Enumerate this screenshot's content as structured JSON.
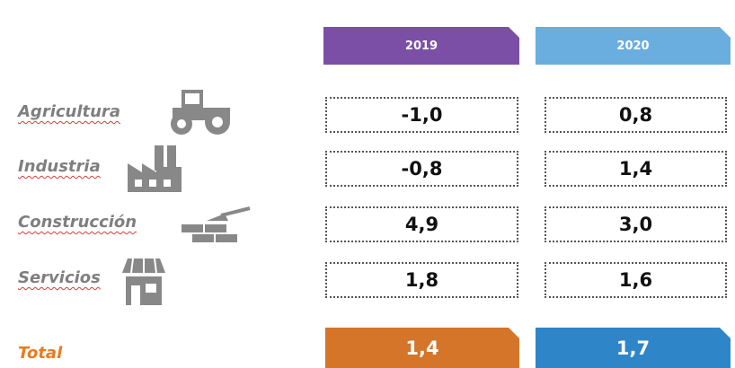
{
  "table": {
    "columns": [
      "2019",
      "2020"
    ],
    "rows": [
      {
        "label": "Agricultura",
        "values": [
          "-1,0",
          "0,8"
        ]
      },
      {
        "label": "Industria",
        "values": [
          "-0,8",
          "1,4"
        ]
      },
      {
        "label": "Construcción",
        "values": [
          "4,9",
          "3,0"
        ]
      },
      {
        "label": "Servicios",
        "values": [
          "1,8",
          "1,6"
        ]
      }
    ],
    "total": {
      "label": "Total",
      "values": [
        "1,4",
        "1,7"
      ]
    }
  }
}
